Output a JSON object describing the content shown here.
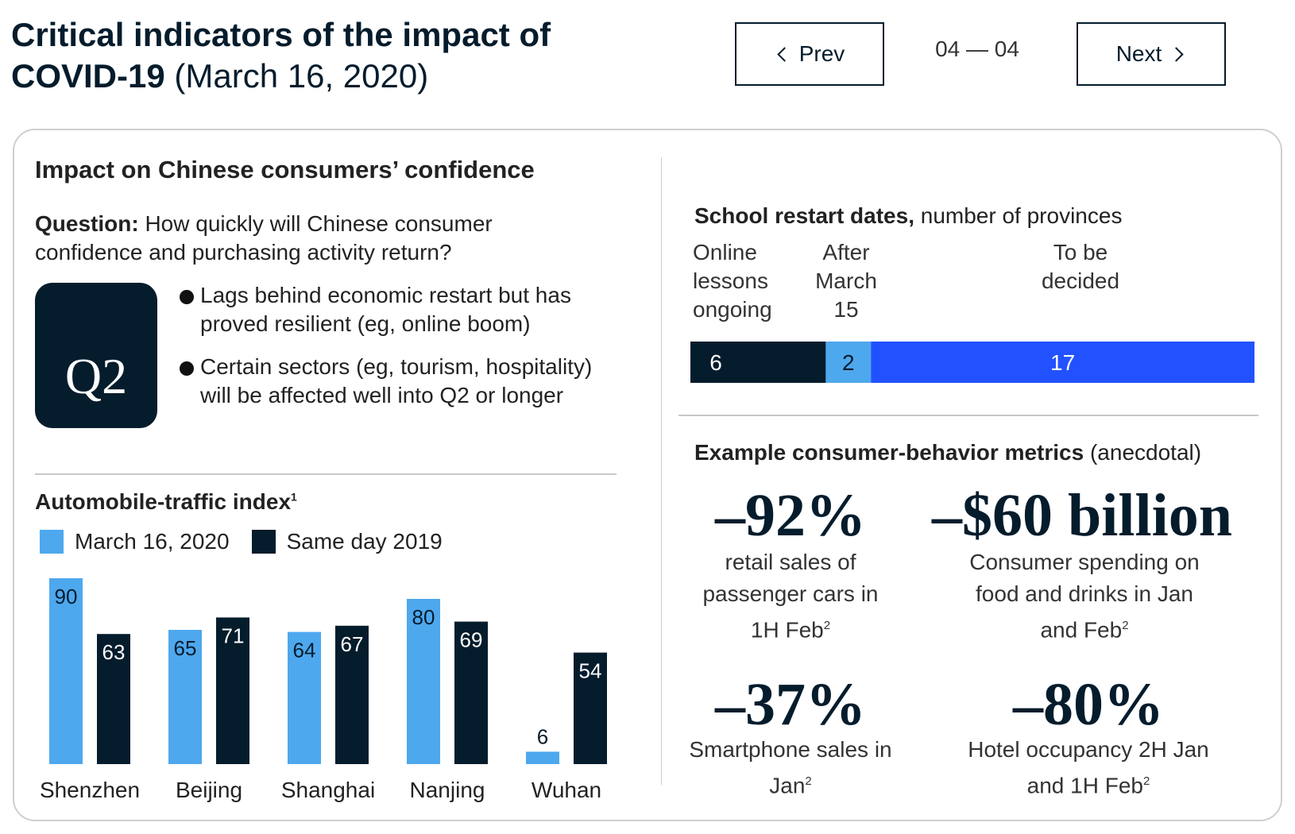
{
  "header": {
    "title_bold": "Critical indicators of the impact of COVID-19",
    "title_date": "(March 16, 2020)",
    "prev_label": "Prev",
    "next_label": "Next",
    "pager": "04 — 04"
  },
  "left": {
    "section_title": "Impact on Chinese consumers’ confidence",
    "question_label": "Question:",
    "question_text": "How quickly will Chinese consumer confidence and purchasing activity return?",
    "badge": "Q2",
    "bullets": [
      "Lags behind economic restart but has proved resilient (eg, online boom)",
      "Certain sectors (eg, tourism, hospitality) will be affected well into Q2 or longer"
    ],
    "auto_title": "Automobile-traffic index",
    "auto_title_footnote": "1",
    "legend": {
      "march": "March 16, 2020",
      "same_day": "Same day 2019"
    }
  },
  "right": {
    "school_title_bold": "School restart dates,",
    "school_title_rest": "number of provinces",
    "school_labels": [
      "Online lessons ongoing",
      "After March 15",
      "To be decided"
    ],
    "metrics_title_bold": "Example consumer-behavior metrics",
    "metrics_title_rest": "(anecdotal)",
    "metrics": [
      {
        "value": "–92%",
        "desc": "retail sales of passenger cars in 1H Feb",
        "footnote": "2"
      },
      {
        "value": "–$60 billion",
        "desc": "Consumer spending on food and drinks in Jan and Feb",
        "footnote": "2"
      },
      {
        "value": "–37%",
        "desc": "Smartphone sales in Jan",
        "footnote": "2"
      },
      {
        "value": "–80%",
        "desc": "Hotel occupancy 2H Jan and 1H Feb",
        "footnote": "2"
      }
    ]
  },
  "colors": {
    "navy": "#051c2c",
    "light_blue": "#4ea8ee",
    "royal_blue": "#2251ff"
  },
  "chart_data": [
    {
      "type": "bar",
      "title": "Automobile-traffic index",
      "categories": [
        "Shenzhen",
        "Beijing",
        "Shanghai",
        "Nanjing",
        "Wuhan"
      ],
      "series": [
        {
          "name": "March 16, 2020",
          "values": [
            90,
            65,
            64,
            80,
            6
          ],
          "color": "#4ea8ee"
        },
        {
          "name": "Same day 2019",
          "values": [
            63,
            71,
            67,
            69,
            54
          ],
          "color": "#051c2c"
        }
      ],
      "ylim": [
        0,
        90
      ],
      "legend": "top-left",
      "grid": false
    },
    {
      "type": "bar",
      "title": "School restart dates",
      "categories": [
        "Online lessons ongoing",
        "After March 15",
        "To be decided"
      ],
      "values": [
        6,
        2,
        17
      ],
      "colors": [
        "#051c2c",
        "#4ea8ee",
        "#2251ff"
      ],
      "stacked": true,
      "orientation": "horizontal"
    }
  ]
}
